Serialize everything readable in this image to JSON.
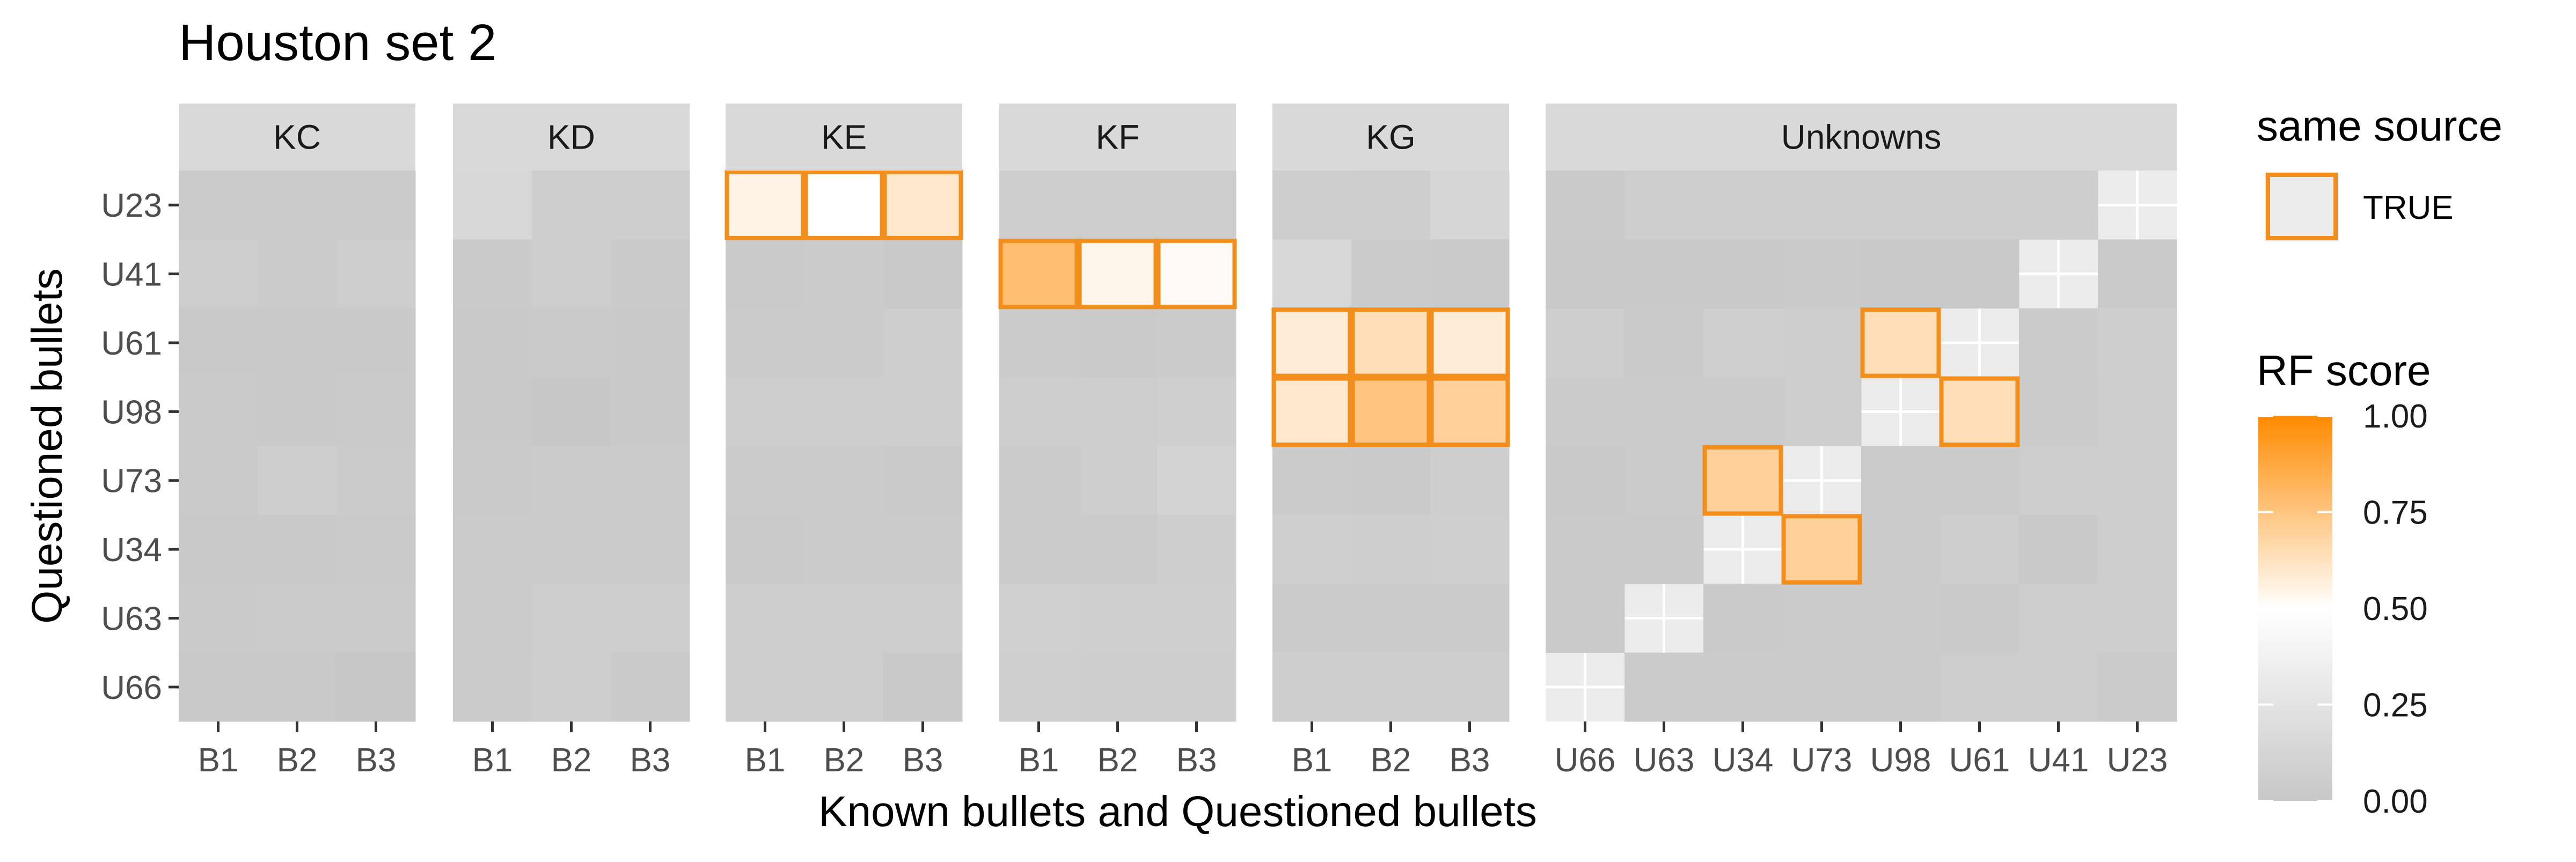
{
  "chart_data": {
    "type": "heatmap",
    "title": "Houston set 2",
    "xlabel": "Known bullets and Questioned bullets",
    "ylabel": "Questioned bullets",
    "y_categories": [
      "U23",
      "U41",
      "U61",
      "U98",
      "U73",
      "U34",
      "U63",
      "U66"
    ],
    "facets": [
      {
        "label": "KC",
        "x": [
          "B1",
          "B2",
          "B3"
        ],
        "values": [
          [
            0.04,
            0.04,
            0.04
          ],
          [
            0.05,
            0.04,
            0.05
          ],
          [
            0.02,
            0.02,
            0.02
          ],
          [
            0.03,
            0.02,
            0.03
          ],
          [
            0.03,
            0.05,
            0.04
          ],
          [
            0.02,
            0.02,
            0.03
          ],
          [
            0.03,
            0.04,
            0.04
          ],
          [
            0.01,
            0.01,
            0.0
          ]
        ],
        "same_source": []
      },
      {
        "label": "KD",
        "x": [
          "B1",
          "B2",
          "B3"
        ],
        "values": [
          [
            0.15,
            0.06,
            0.06
          ],
          [
            0.03,
            0.05,
            0.03
          ],
          [
            0.02,
            0.03,
            0.02
          ],
          [
            0.02,
            0.0,
            0.02
          ],
          [
            0.03,
            0.04,
            0.04
          ],
          [
            0.04,
            0.04,
            0.04
          ],
          [
            0.04,
            0.05,
            0.06
          ],
          [
            0.04,
            0.06,
            0.03
          ]
        ],
        "same_source": []
      },
      {
        "label": "KE",
        "x": [
          "B1",
          "B2",
          "B3"
        ],
        "values": [
          [
            0.55,
            0.5,
            0.6
          ],
          [
            0.03,
            0.04,
            0.02
          ],
          [
            0.04,
            0.04,
            0.05
          ],
          [
            0.05,
            0.05,
            0.05
          ],
          [
            0.04,
            0.04,
            0.03
          ],
          [
            0.03,
            0.04,
            0.04
          ],
          [
            0.06,
            0.06,
            0.05
          ],
          [
            0.05,
            0.05,
            0.01
          ]
        ],
        "same_source": [
          [
            0,
            0
          ],
          [
            0,
            1
          ],
          [
            0,
            2
          ]
        ]
      },
      {
        "label": "KF",
        "x": [
          "B1",
          "B2",
          "B3"
        ],
        "values": [
          [
            0.05,
            0.05,
            0.05
          ],
          [
            0.78,
            0.54,
            0.52
          ],
          [
            0.04,
            0.03,
            0.04
          ],
          [
            0.06,
            0.05,
            0.07
          ],
          [
            0.04,
            0.05,
            0.1
          ],
          [
            0.04,
            0.04,
            0.06
          ],
          [
            0.08,
            0.07,
            0.07
          ],
          [
            0.07,
            0.06,
            0.06
          ]
        ],
        "same_source": [
          [
            1,
            0
          ],
          [
            1,
            1
          ],
          [
            1,
            2
          ]
        ]
      },
      {
        "label": "KG",
        "x": [
          "B1",
          "B2",
          "B3"
        ],
        "values": [
          [
            0.05,
            0.06,
            0.13
          ],
          [
            0.14,
            0.04,
            0.03
          ],
          [
            0.58,
            0.64,
            0.58
          ],
          [
            0.6,
            0.75,
            0.7
          ],
          [
            0.04,
            0.03,
            0.06
          ],
          [
            0.07,
            0.05,
            0.07
          ],
          [
            0.04,
            0.04,
            0.04
          ],
          [
            0.05,
            0.06,
            0.05
          ]
        ],
        "same_source": [
          [
            2,
            0
          ],
          [
            2,
            1
          ],
          [
            2,
            2
          ],
          [
            3,
            0
          ],
          [
            3,
            1
          ],
          [
            3,
            2
          ]
        ]
      },
      {
        "label": "Unknowns",
        "x": [
          "U66",
          "U63",
          "U34",
          "U73",
          "U98",
          "U61",
          "U41",
          "U23"
        ],
        "values": [
          [
            0.03,
            0.06,
            0.06,
            0.06,
            0.06,
            0.06,
            0.06,
            null
          ],
          [
            0.02,
            0.02,
            0.02,
            0.03,
            0.02,
            0.02,
            null,
            0.03
          ],
          [
            0.05,
            0.03,
            0.07,
            0.06,
            0.64,
            null,
            0.04,
            0.05
          ],
          [
            0.04,
            0.04,
            0.04,
            0.05,
            null,
            0.64,
            0.04,
            0.06
          ],
          [
            0.02,
            0.04,
            0.7,
            null,
            0.04,
            0.04,
            0.05,
            0.06
          ],
          [
            0.03,
            0.03,
            null,
            0.7,
            0.04,
            0.05,
            0.02,
            0.05
          ],
          [
            0.03,
            null,
            0.03,
            0.04,
            0.04,
            0.03,
            0.05,
            0.06
          ],
          [
            null,
            0.04,
            0.04,
            0.04,
            0.04,
            0.05,
            0.05,
            0.04
          ]
        ],
        "same_source": [
          [
            2,
            4
          ],
          [
            3,
            5
          ],
          [
            4,
            2
          ],
          [
            5,
            3
          ]
        ]
      }
    ],
    "legend": {
      "position": "right",
      "same_source_title": "same source",
      "same_source_entry": "TRUE",
      "score_title": "RF score",
      "score_ticks": [
        "1.00",
        "0.75",
        "0.50",
        "0.25",
        "0.00"
      ],
      "score_range": [
        0,
        1
      ]
    },
    "colors": {
      "low": "#c7c7c7",
      "mid": "#ffffff",
      "high": "#ff8a00",
      "outline": "#f28e1c",
      "na": "#d9d9d9",
      "panel": "#ebebeb",
      "strip": "#d9d9d9"
    },
    "grid": true
  }
}
